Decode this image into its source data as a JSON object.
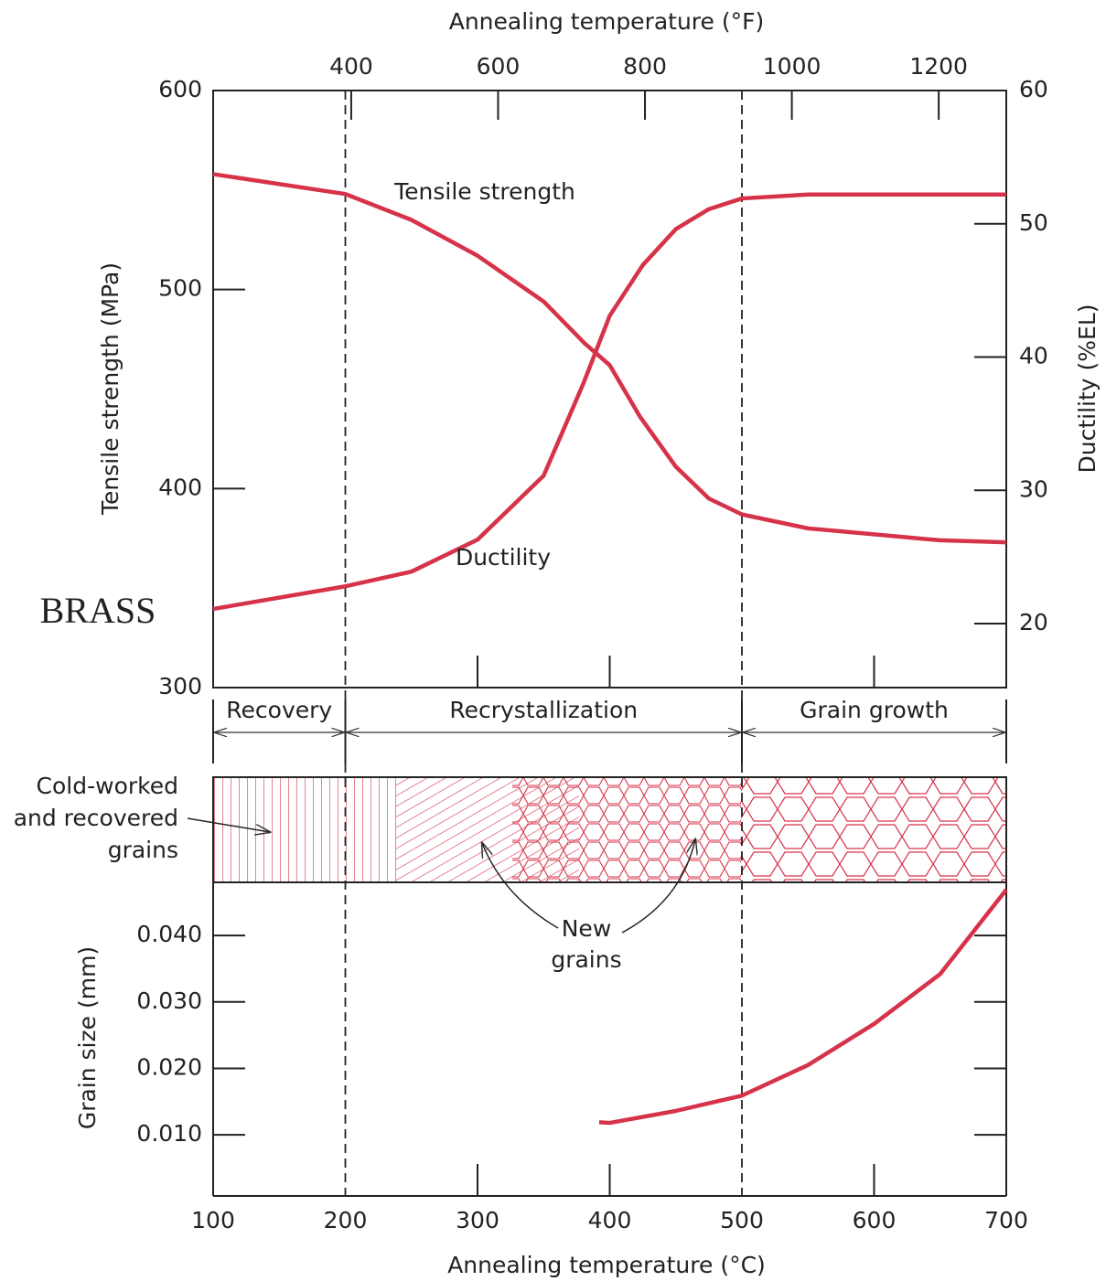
{
  "chart_data": [
    {
      "type": "line",
      "x2_label": "Annealing temperature (°F)",
      "y_label": "Tensile strength (MPa)",
      "y2_label": "Ductility (%EL)",
      "xlim": [
        100,
        700
      ],
      "x2lim": [
        212,
        1292
      ],
      "x2ticks": [
        400,
        600,
        800,
        1000,
        1200
      ],
      "ylim": [
        300,
        600
      ],
      "yticks": [
        300,
        400,
        500,
        600
      ],
      "y2lim": [
        15.2,
        60
      ],
      "y2ticks": [
        20,
        30,
        40,
        50,
        60
      ],
      "inner_xticks": [
        300,
        400,
        600
      ],
      "series": [
        {
          "name": "Tensile strength",
          "color": "#d6334a",
          "x": [
            100,
            200,
            250,
            300,
            350,
            381,
            400,
            423,
            450,
            475,
            500,
            550,
            600,
            650,
            700
          ],
          "values": [
            558,
            548,
            535,
            517,
            494,
            473,
            462,
            436,
            411,
            395,
            387,
            380,
            377,
            374,
            373
          ]
        },
        {
          "name": "Ductility",
          "color": "#d6334a",
          "axis": "y2",
          "x": [
            100,
            200,
            250,
            300,
            350,
            380,
            400,
            425,
            450,
            475,
            500,
            550,
            700
          ],
          "values": [
            21.1,
            22.8,
            23.9,
            26.3,
            31.1,
            38,
            43.1,
            46.9,
            49.6,
            51.1,
            51.9,
            52.2,
            52.2
          ]
        }
      ],
      "regions": [
        {
          "label": "Recovery",
          "from": 100,
          "to": 200
        },
        {
          "label": "Recrystallization",
          "from": 200,
          "to": 500
        },
        {
          "label": "Grain growth",
          "from": 500,
          "to": 700
        }
      ],
      "annotation": "BRASS",
      "microstructure_labels": {
        "cold_worked": [
          "Cold-worked",
          "and recovered",
          "grains"
        ],
        "new_grains": [
          "New",
          "grains"
        ]
      }
    },
    {
      "type": "line",
      "x_label": "Annealing temperature (°C)",
      "y_label": "Grain size (mm)",
      "xlim": [
        100,
        700
      ],
      "xticks": [
        100,
        200,
        300,
        400,
        500,
        600,
        700
      ],
      "inner_xticks": [
        300,
        400,
        600
      ],
      "ylim": [
        0.0008,
        0.048
      ],
      "yticks": [
        {
          "value": 0.01,
          "label": "0.010"
        },
        {
          "value": 0.02,
          "label": "0.020"
        },
        {
          "value": 0.03,
          "label": "0.030"
        },
        {
          "value": 0.04,
          "label": "0.040"
        }
      ],
      "series": [
        {
          "color": "#d6334a",
          "x": [
            392,
            400,
            450,
            500,
            550,
            600,
            650,
            700
          ],
          "values": [
            0.0119,
            0.0118,
            0.0136,
            0.0159,
            0.0205,
            0.0267,
            0.0342,
            0.0469
          ]
        }
      ]
    }
  ]
}
